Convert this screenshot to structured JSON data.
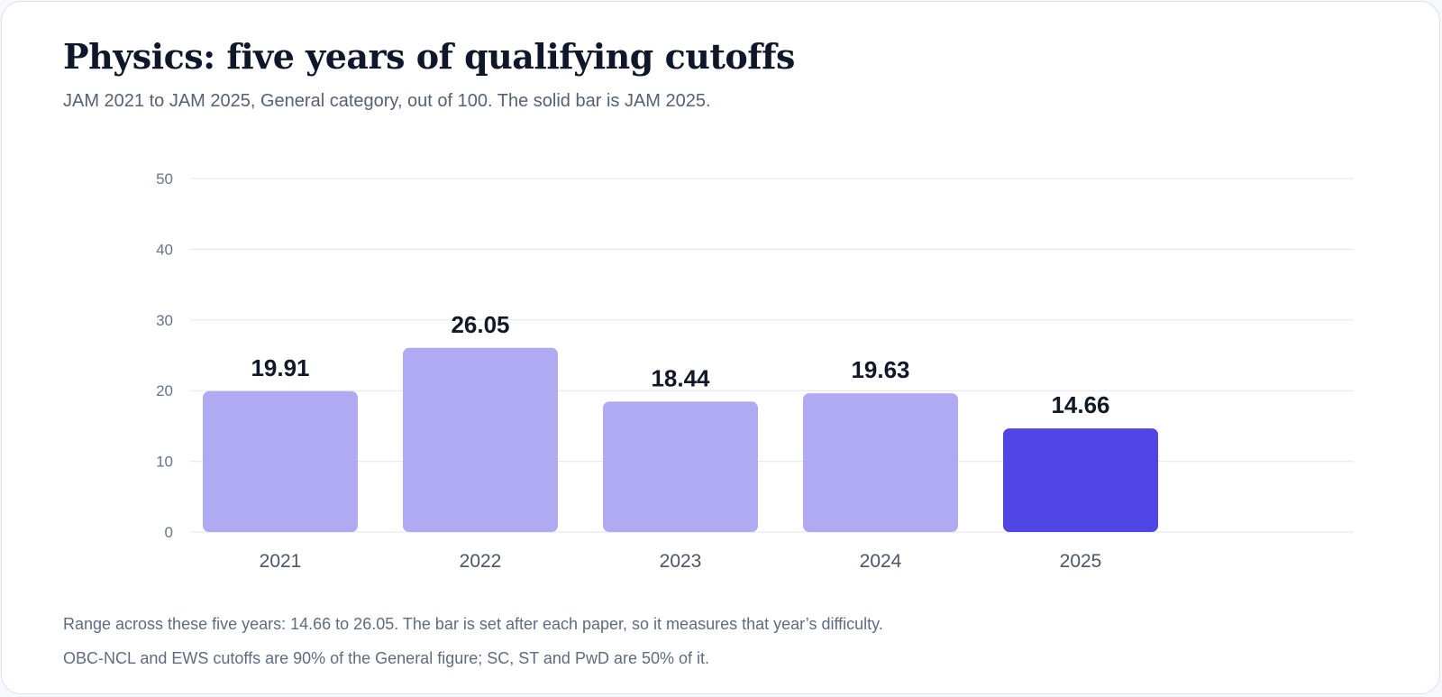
{
  "title": "Physics: five years of qualifying cutoffs",
  "subtitle": "JAM 2021 to JAM 2025, General category, out of 100. The solid bar is JAM 2025.",
  "notes": [
    "Range across these five years: 14.66 to 26.05. The bar is set after each paper, so it measures that year’s difficulty.",
    "OBC-NCL and EWS cutoffs are 90% of the General figure; SC, ST and PwD are 50% of it."
  ],
  "colors": {
    "bar": "#b0aaf2",
    "highlight": "#4f46e5",
    "grid": "#e3e6f0"
  },
  "chart_data": {
    "type": "bar",
    "title": "Physics: five years of qualifying cutoffs",
    "xlabel": "",
    "ylabel": "",
    "categories": [
      "2021",
      "2022",
      "2023",
      "2024",
      "2025"
    ],
    "values": [
      19.91,
      26.05,
      18.44,
      19.63,
      14.66
    ],
    "value_labels": [
      "19.91",
      "26.05",
      "18.44",
      "19.63",
      "14.66"
    ],
    "highlight_category": "2025",
    "ylim": [
      0,
      50
    ],
    "yticks": [
      0,
      10,
      20,
      30,
      40,
      50
    ],
    "grid": true,
    "legend": "none"
  }
}
